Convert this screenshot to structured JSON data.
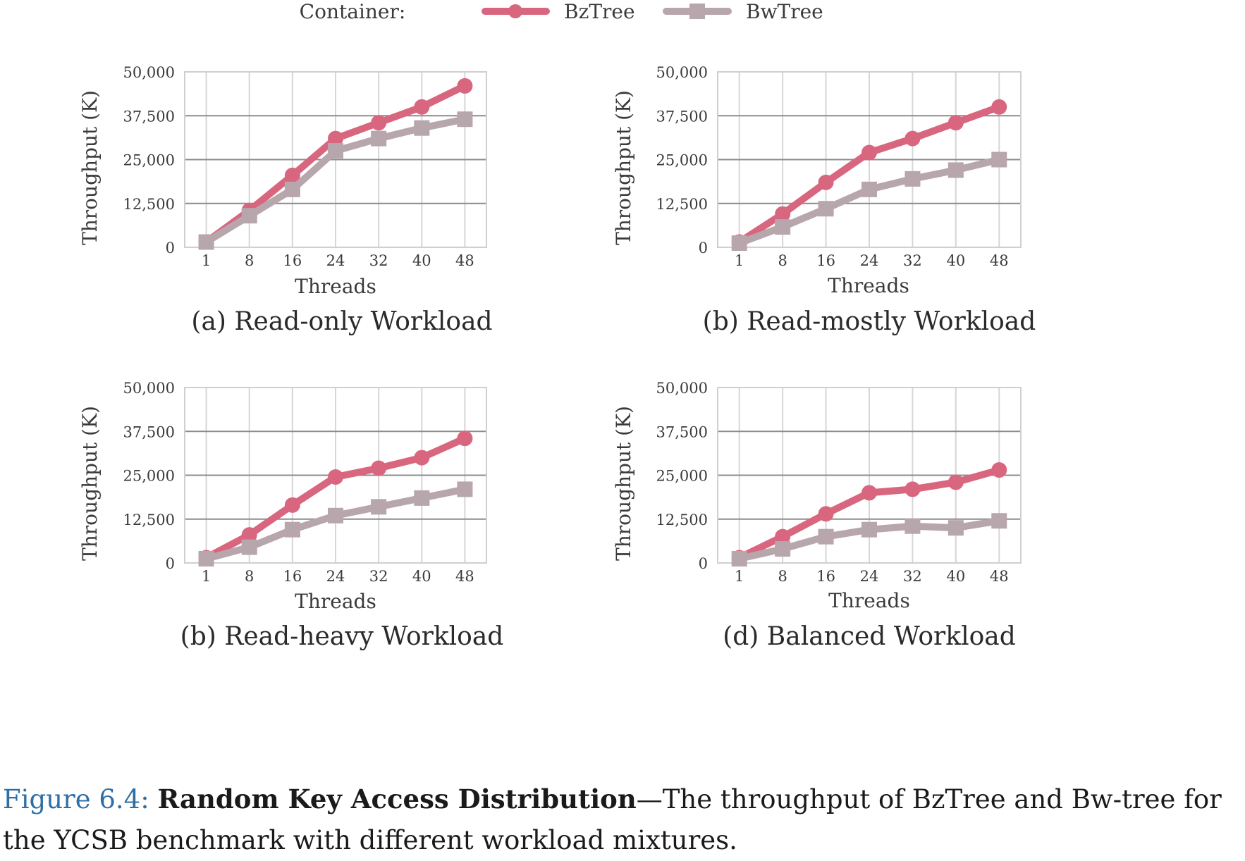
{
  "legend": {
    "title": "Container:",
    "entries": [
      {
        "name": "BzTree",
        "color": "#d9667f",
        "marker": "circle"
      },
      {
        "name": "BwTree",
        "color": "#b7a6ac",
        "marker": "square"
      }
    ]
  },
  "chart_data": [
    {
      "type": "line",
      "title": "(a) Read-only Workload",
      "xlabel": "Threads",
      "ylabel": "Throughput (K)",
      "categories": [
        "1",
        "8",
        "16",
        "24",
        "32",
        "40",
        "48"
      ],
      "ylim": [
        0,
        50000
      ],
      "yticks": [
        "0",
        "12,500",
        "25,000",
        "37,500",
        "50,000"
      ],
      "grid": "horizontal",
      "series": [
        {
          "name": "BzTree",
          "values": [
            1500,
            10500,
            20500,
            31000,
            35500,
            40000,
            46000
          ]
        },
        {
          "name": "BwTree",
          "values": [
            1500,
            9000,
            16500,
            27500,
            31000,
            34000,
            36500
          ]
        }
      ]
    },
    {
      "type": "line",
      "title": "(b) Read-mostly Workload",
      "xlabel": "Threads",
      "ylabel": "Throughput (K)",
      "categories": [
        "1",
        "8",
        "16",
        "24",
        "32",
        "40",
        "48"
      ],
      "ylim": [
        0,
        50000
      ],
      "yticks": [
        "0",
        "12,500",
        "25,000",
        "37,500",
        "50,000"
      ],
      "grid": "horizontal",
      "series": [
        {
          "name": "BzTree",
          "values": [
            1500,
            9500,
            18500,
            27000,
            31000,
            35500,
            40000
          ]
        },
        {
          "name": "BwTree",
          "values": [
            1200,
            5800,
            11000,
            16500,
            19500,
            22000,
            25000
          ]
        }
      ]
    },
    {
      "type": "line",
      "title": "(b) Read-heavy Workload",
      "xlabel": "Threads",
      "ylabel": "Throughput (K)",
      "categories": [
        "1",
        "8",
        "16",
        "24",
        "32",
        "40",
        "48"
      ],
      "ylim": [
        0,
        50000
      ],
      "yticks": [
        "0",
        "12,500",
        "25,000",
        "37,500",
        "50,000"
      ],
      "grid": "horizontal",
      "series": [
        {
          "name": "BzTree",
          "values": [
            1500,
            8000,
            16500,
            24500,
            27000,
            30000,
            35500
          ]
        },
        {
          "name": "BwTree",
          "values": [
            1200,
            4500,
            9500,
            13500,
            16000,
            18500,
            21000
          ]
        }
      ]
    },
    {
      "type": "line",
      "title": "(d) Balanced Workload",
      "xlabel": "Threads",
      "ylabel": "Throughput (K)",
      "categories": [
        "1",
        "8",
        "16",
        "24",
        "32",
        "40",
        "48"
      ],
      "ylim": [
        0,
        50000
      ],
      "yticks": [
        "0",
        "12,500",
        "25,000",
        "37,500",
        "50,000"
      ],
      "grid": "horizontal",
      "series": [
        {
          "name": "BzTree",
          "values": [
            1500,
            7500,
            14000,
            20000,
            21000,
            23000,
            26500
          ]
        },
        {
          "name": "BwTree",
          "values": [
            1200,
            4000,
            7500,
            9500,
            10500,
            10000,
            12000
          ]
        }
      ]
    }
  ],
  "caption": {
    "label": "Figure 6.4:",
    "title": "Random Key Access Distribution",
    "text": "—The throughput of BzTree and Bw-tree for the YCSB benchmark with different workload mixtures."
  }
}
